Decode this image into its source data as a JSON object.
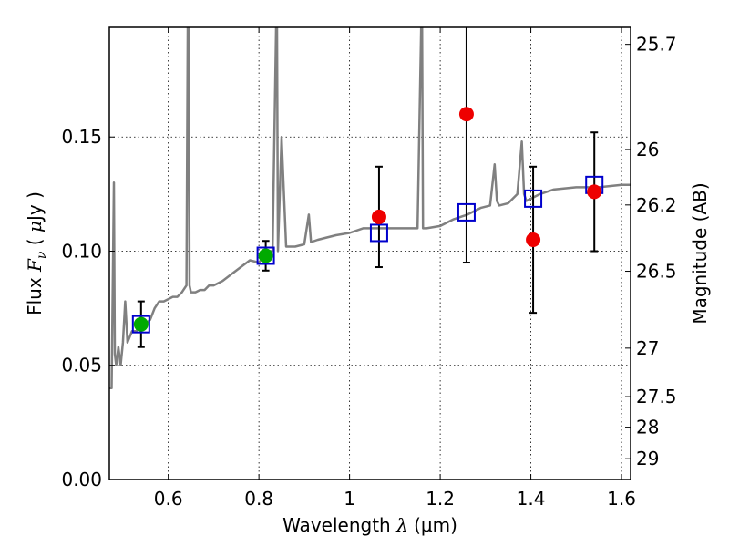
{
  "chart_data": {
    "type": "scatter",
    "xlabel_text": "Wavelength",
    "xlabel_symbol": "λ",
    "xlabel_unit": "(μm)",
    "ylabel_text": "Flux",
    "ylabel_symbol": "F",
    "ylabel_subscript": "ν",
    "ylabel_unit_open": "(",
    "ylabel_unit_mu": "μ",
    "ylabel_unit_rest": "Jy )",
    "y2label": "Magnitude (AB)",
    "xlim": [
      0.47,
      1.62
    ],
    "ylim": [
      0.0,
      0.198
    ],
    "x_ticks": [
      0.6,
      0.8,
      1.0,
      1.2,
      1.4,
      1.6
    ],
    "x_tick_labels": [
      "0.6",
      "0.8",
      "1",
      "1.2",
      "1.4",
      "1.6"
    ],
    "y_ticks": [
      0.0,
      0.05,
      0.1,
      0.15
    ],
    "y_tick_labels": [
      "0.00",
      "0.05",
      "0.10",
      "0.15"
    ],
    "y2_ticks": [
      25.7,
      26,
      26.2,
      26.5,
      27,
      27.5,
      28,
      29
    ],
    "y2_tick_labels": [
      "25.7",
      "26",
      "26.2",
      "26.5",
      "27",
      "27.5",
      "28",
      "29"
    ],
    "grid": true,
    "colors": {
      "spectrum": "#808080",
      "model": "#0000cc",
      "green": "#00aa00",
      "red": "#ee0000",
      "error": "#000000"
    },
    "spectrum": {
      "x": [
        0.47,
        0.475,
        0.48,
        0.482,
        0.485,
        0.49,
        0.495,
        0.5,
        0.505,
        0.51,
        0.52,
        0.53,
        0.54,
        0.55,
        0.56,
        0.57,
        0.58,
        0.59,
        0.6,
        0.61,
        0.62,
        0.63,
        0.64,
        0.643,
        0.645,
        0.647,
        0.65,
        0.66,
        0.67,
        0.68,
        0.69,
        0.7,
        0.72,
        0.74,
        0.76,
        0.78,
        0.8,
        0.82,
        0.83,
        0.838,
        0.84,
        0.842,
        0.85,
        0.86,
        0.87,
        0.88,
        0.9,
        0.91,
        0.915,
        0.93,
        0.95,
        0.97,
        1.0,
        1.03,
        1.06,
        1.09,
        1.12,
        1.15,
        1.158,
        1.16,
        1.162,
        1.17,
        1.2,
        1.23,
        1.26,
        1.29,
        1.31,
        1.32,
        1.325,
        1.33,
        1.35,
        1.37,
        1.38,
        1.385,
        1.39,
        1.4,
        1.42,
        1.45,
        1.5,
        1.55,
        1.6,
        1.62
      ],
      "y": [
        0.04,
        0.04,
        0.13,
        0.055,
        0.05,
        0.058,
        0.05,
        0.06,
        0.078,
        0.06,
        0.065,
        0.065,
        0.07,
        0.068,
        0.07,
        0.075,
        0.078,
        0.078,
        0.079,
        0.08,
        0.08,
        0.082,
        0.085,
        0.198,
        0.198,
        0.085,
        0.082,
        0.082,
        0.083,
        0.083,
        0.085,
        0.085,
        0.087,
        0.09,
        0.093,
        0.096,
        0.095,
        0.1,
        0.1,
        0.198,
        0.198,
        0.1,
        0.15,
        0.102,
        0.102,
        0.102,
        0.103,
        0.116,
        0.104,
        0.105,
        0.106,
        0.107,
        0.108,
        0.11,
        0.11,
        0.11,
        0.11,
        0.11,
        0.198,
        0.198,
        0.11,
        0.11,
        0.111,
        0.114,
        0.116,
        0.119,
        0.12,
        0.138,
        0.122,
        0.12,
        0.121,
        0.125,
        0.148,
        0.125,
        0.122,
        0.123,
        0.125,
        0.127,
        0.128,
        0.128,
        0.129,
        0.129
      ]
    },
    "model_points": {
      "x": [
        0.54,
        0.815,
        1.065,
        1.258,
        1.405,
        1.54
      ],
      "y": [
        0.068,
        0.098,
        0.108,
        0.117,
        0.123,
        0.129
      ]
    },
    "green_points": {
      "x": [
        0.54,
        0.815
      ],
      "y": [
        0.068,
        0.098
      ],
      "err": [
        0.01,
        0.0065
      ]
    },
    "red_points": {
      "x": [
        1.065,
        1.258,
        1.405,
        1.54
      ],
      "y": [
        0.115,
        0.16,
        0.105,
        0.126
      ],
      "err_low": [
        0.022,
        0.065,
        0.032,
        0.026
      ],
      "err_high": [
        0.022,
        0.04,
        0.032,
        0.026
      ]
    }
  }
}
